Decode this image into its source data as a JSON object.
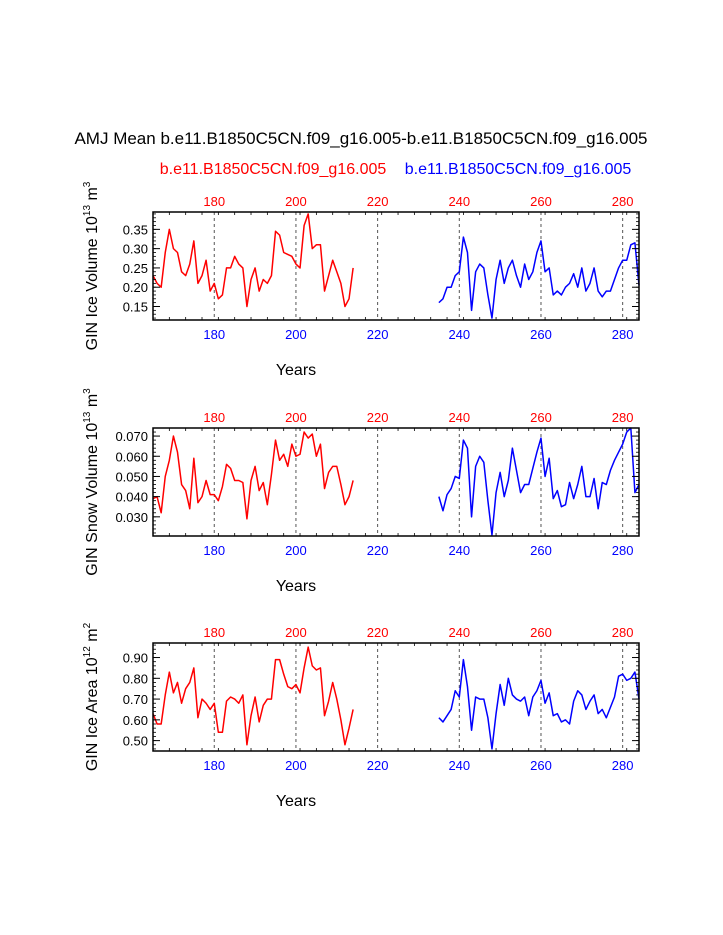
{
  "figure": {
    "title": "AMJ Mean b.e11.B1850C5CN.f09_g16.005-b.e11.B1850C5CN.f09_g16.005",
    "legend_red": "b.e11.B1850C5CN.f09_g16.005",
    "legend_blue": "b.e11.B1850C5CN.f09_g16.005",
    "colors": {
      "red": "#ff0000",
      "blue": "#0000ff",
      "axis": "#000000"
    }
  },
  "chart_data": [
    {
      "type": "line",
      "ylabel": "GIN Ice Volume 10",
      "ylabel_exp": "13",
      "ylabel_unit": " m",
      "ylabel_unit_exp": "3",
      "xlabel": "Years",
      "ylim": [
        0.115,
        0.395
      ],
      "yticks": [
        "0.15",
        "0.20",
        "0.25",
        "0.30",
        "0.35"
      ],
      "ytick_values": [
        0.15,
        0.2,
        0.25,
        0.3,
        0.35
      ],
      "top_xlim": [
        165,
        284
      ],
      "top_xticks": [
        "180",
        "200",
        "220",
        "240",
        "260",
        "280"
      ],
      "bottom_xlim": [
        165,
        284
      ],
      "bottom_xticks": [
        "180",
        "200",
        "220",
        "240",
        "260",
        "280"
      ],
      "dashed_x": [
        180,
        200,
        220,
        240,
        260,
        280
      ],
      "series": [
        {
          "name": "b.e11.B1850C5CN.f09_g16.005",
          "color": "#ff0000",
          "axis": "top",
          "x": [
            165,
            166,
            167,
            168,
            169,
            170,
            171,
            172,
            173,
            174,
            175,
            176,
            177,
            178,
            179,
            180,
            181,
            182,
            183,
            184,
            185,
            186,
            187,
            188,
            189,
            190,
            191,
            192,
            193,
            194,
            195,
            196,
            197,
            198,
            199,
            200,
            201,
            202,
            203,
            204,
            205,
            206,
            207,
            208,
            209,
            210,
            211,
            212,
            213,
            214
          ],
          "values": [
            0.23,
            0.21,
            0.2,
            0.29,
            0.35,
            0.3,
            0.29,
            0.24,
            0.23,
            0.26,
            0.32,
            0.21,
            0.23,
            0.27,
            0.19,
            0.21,
            0.17,
            0.18,
            0.25,
            0.25,
            0.28,
            0.26,
            0.25,
            0.15,
            0.22,
            0.25,
            0.19,
            0.22,
            0.21,
            0.23,
            0.345,
            0.335,
            0.29,
            0.285,
            0.28,
            0.26,
            0.25,
            0.36,
            0.39,
            0.3,
            0.31,
            0.31,
            0.19,
            0.23,
            0.27,
            0.24,
            0.21,
            0.15,
            0.17,
            0.25
          ]
        },
        {
          "name": "b.e11.B1850C5CN.f09_g16.005",
          "color": "#0000ff",
          "axis": "bottom",
          "x": [
            235,
            236,
            237,
            238,
            239,
            240,
            241,
            242,
            243,
            244,
            245,
            246,
            247,
            248,
            249,
            250,
            251,
            252,
            253,
            254,
            255,
            256,
            257,
            258,
            259,
            260,
            261,
            262,
            263,
            264,
            265,
            266,
            267,
            268,
            269,
            270,
            271,
            272,
            273,
            274,
            275,
            276,
            277,
            278,
            279,
            280,
            281,
            282,
            283,
            284
          ],
          "values": [
            0.16,
            0.17,
            0.2,
            0.2,
            0.23,
            0.24,
            0.33,
            0.29,
            0.14,
            0.24,
            0.26,
            0.25,
            0.18,
            0.12,
            0.22,
            0.27,
            0.21,
            0.25,
            0.27,
            0.23,
            0.2,
            0.26,
            0.22,
            0.24,
            0.29,
            0.32,
            0.24,
            0.25,
            0.18,
            0.19,
            0.18,
            0.2,
            0.21,
            0.235,
            0.2,
            0.25,
            0.19,
            0.21,
            0.25,
            0.19,
            0.175,
            0.19,
            0.19,
            0.22,
            0.25,
            0.27,
            0.27,
            0.31,
            0.315,
            0.205
          ]
        }
      ]
    },
    {
      "type": "line",
      "ylabel": "GIN Snow Volume 10",
      "ylabel_exp": "13",
      "ylabel_unit": " m",
      "ylabel_unit_exp": "3",
      "xlabel": "Years",
      "ylim": [
        0.0205,
        0.074
      ],
      "yticks": [
        "0.030",
        "0.040",
        "0.050",
        "0.060",
        "0.070"
      ],
      "ytick_values": [
        0.03,
        0.04,
        0.05,
        0.06,
        0.07
      ],
      "top_xlim": [
        165,
        284
      ],
      "top_xticks": [
        "180",
        "200",
        "220",
        "240",
        "260",
        "280"
      ],
      "bottom_xlim": [
        165,
        284
      ],
      "bottom_xticks": [
        "180",
        "200",
        "220",
        "240",
        "260",
        "280"
      ],
      "dashed_x": [
        180,
        200,
        220,
        240,
        260,
        280
      ],
      "series": [
        {
          "name": "b.e11.B1850C5CN.f09_g16.005",
          "color": "#ff0000",
          "axis": "top",
          "x": [
            165,
            166,
            167,
            168,
            169,
            170,
            171,
            172,
            173,
            174,
            175,
            176,
            177,
            178,
            179,
            180,
            181,
            182,
            183,
            184,
            185,
            186,
            187,
            188,
            189,
            190,
            191,
            192,
            193,
            194,
            195,
            196,
            197,
            198,
            199,
            200,
            201,
            202,
            203,
            204,
            205,
            206,
            207,
            208,
            209,
            210,
            211,
            212,
            213,
            214
          ],
          "values": [
            0.039,
            0.04,
            0.032,
            0.05,
            0.058,
            0.07,
            0.062,
            0.046,
            0.043,
            0.034,
            0.059,
            0.037,
            0.04,
            0.048,
            0.041,
            0.041,
            0.038,
            0.045,
            0.056,
            0.054,
            0.048,
            0.048,
            0.047,
            0.029,
            0.048,
            0.055,
            0.043,
            0.047,
            0.036,
            0.051,
            0.068,
            0.058,
            0.061,
            0.055,
            0.066,
            0.06,
            0.061,
            0.072,
            0.069,
            0.071,
            0.06,
            0.066,
            0.044,
            0.052,
            0.055,
            0.055,
            0.046,
            0.036,
            0.04,
            0.048
          ]
        },
        {
          "name": "b.e11.B1850C5CN.f09_g16.005",
          "color": "#0000ff",
          "axis": "bottom",
          "x": [
            235,
            236,
            237,
            238,
            239,
            240,
            241,
            242,
            243,
            244,
            245,
            246,
            247,
            248,
            249,
            250,
            251,
            252,
            253,
            254,
            255,
            256,
            257,
            258,
            259,
            260,
            261,
            262,
            263,
            264,
            265,
            266,
            267,
            268,
            269,
            270,
            271,
            272,
            273,
            274,
            275,
            276,
            277,
            278,
            279,
            280,
            281,
            282,
            283,
            284
          ],
          "values": [
            0.04,
            0.033,
            0.041,
            0.044,
            0.05,
            0.049,
            0.068,
            0.064,
            0.03,
            0.055,
            0.06,
            0.057,
            0.038,
            0.021,
            0.042,
            0.052,
            0.04,
            0.048,
            0.064,
            0.053,
            0.042,
            0.046,
            0.046,
            0.054,
            0.062,
            0.069,
            0.05,
            0.059,
            0.039,
            0.043,
            0.035,
            0.036,
            0.047,
            0.039,
            0.046,
            0.055,
            0.04,
            0.04,
            0.049,
            0.034,
            0.047,
            0.046,
            0.053,
            0.058,
            0.062,
            0.066,
            0.072,
            0.074,
            0.042,
            0.046
          ]
        }
      ]
    },
    {
      "type": "line",
      "ylabel": "GIN Ice Area 10",
      "ylabel_exp": "12",
      "ylabel_unit": " m",
      "ylabel_unit_exp": "2",
      "xlabel": "Years",
      "ylim": [
        0.45,
        0.97
      ],
      "yticks": [
        "0.50",
        "0.60",
        "0.70",
        "0.80",
        "0.90"
      ],
      "ytick_values": [
        0.5,
        0.6,
        0.7,
        0.8,
        0.9
      ],
      "top_xlim": [
        165,
        284
      ],
      "top_xticks": [
        "180",
        "200",
        "220",
        "240",
        "260",
        "280"
      ],
      "bottom_xlim": [
        165,
        284
      ],
      "bottom_xticks": [
        "180",
        "200",
        "220",
        "240",
        "260",
        "280"
      ],
      "dashed_x": [
        180,
        200,
        220,
        240,
        260,
        280
      ],
      "series": [
        {
          "name": "b.e11.B1850C5CN.f09_g16.005",
          "color": "#ff0000",
          "axis": "top",
          "x": [
            165,
            166,
            167,
            168,
            169,
            170,
            171,
            172,
            173,
            174,
            175,
            176,
            177,
            178,
            179,
            180,
            181,
            182,
            183,
            184,
            185,
            186,
            187,
            188,
            189,
            190,
            191,
            192,
            193,
            194,
            195,
            196,
            197,
            198,
            199,
            200,
            201,
            202,
            203,
            204,
            205,
            206,
            207,
            208,
            209,
            210,
            211,
            212,
            213,
            214
          ],
          "values": [
            0.63,
            0.58,
            0.58,
            0.72,
            0.83,
            0.73,
            0.78,
            0.68,
            0.75,
            0.78,
            0.85,
            0.61,
            0.7,
            0.68,
            0.65,
            0.68,
            0.54,
            0.54,
            0.69,
            0.71,
            0.7,
            0.68,
            0.72,
            0.48,
            0.62,
            0.71,
            0.59,
            0.67,
            0.7,
            0.7,
            0.89,
            0.89,
            0.82,
            0.76,
            0.75,
            0.77,
            0.73,
            0.85,
            0.95,
            0.86,
            0.84,
            0.85,
            0.62,
            0.69,
            0.78,
            0.7,
            0.6,
            0.48,
            0.56,
            0.65
          ]
        },
        {
          "name": "b.e11.B1850C5CN.f09_g16.005",
          "color": "#0000ff",
          "axis": "bottom",
          "x": [
            235,
            236,
            237,
            238,
            239,
            240,
            241,
            242,
            243,
            244,
            245,
            246,
            247,
            248,
            249,
            250,
            251,
            252,
            253,
            254,
            255,
            256,
            257,
            258,
            259,
            260,
            261,
            262,
            263,
            264,
            265,
            266,
            267,
            268,
            269,
            270,
            271,
            272,
            273,
            274,
            275,
            276,
            277,
            278,
            279,
            280,
            281,
            282,
            283,
            284
          ],
          "values": [
            0.61,
            0.59,
            0.62,
            0.65,
            0.74,
            0.71,
            0.89,
            0.76,
            0.55,
            0.71,
            0.7,
            0.7,
            0.61,
            0.46,
            0.63,
            0.77,
            0.67,
            0.8,
            0.72,
            0.7,
            0.69,
            0.71,
            0.62,
            0.71,
            0.74,
            0.79,
            0.68,
            0.73,
            0.62,
            0.63,
            0.59,
            0.6,
            0.58,
            0.69,
            0.74,
            0.72,
            0.65,
            0.69,
            0.72,
            0.63,
            0.65,
            0.61,
            0.66,
            0.71,
            0.81,
            0.82,
            0.79,
            0.8,
            0.83,
            0.7
          ]
        }
      ]
    }
  ]
}
